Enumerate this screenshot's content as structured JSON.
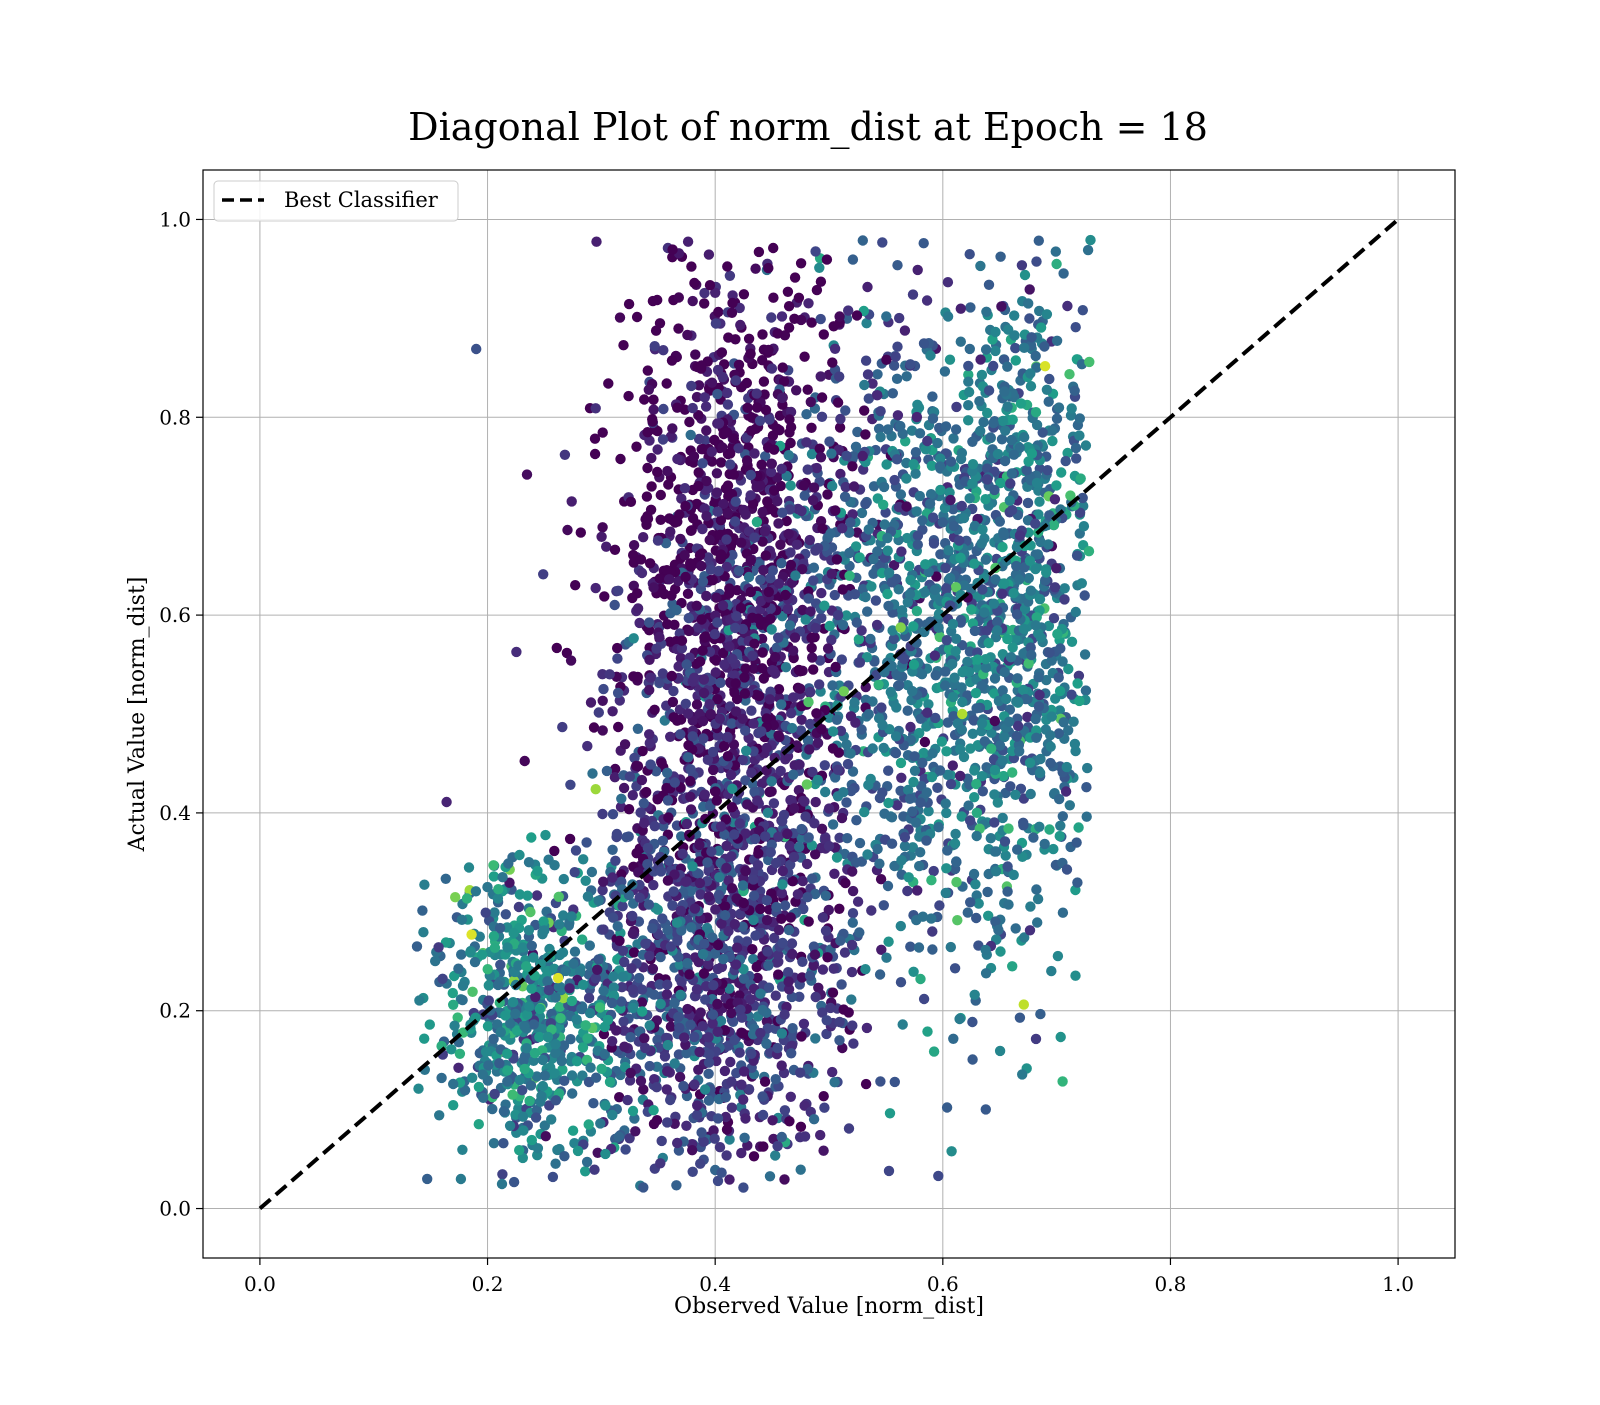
{
  "chart_data": {
    "type": "scatter",
    "title": "Diagonal Plot of norm_dist at Epoch = 18",
    "xlabel": "Observed Value [norm_dist]",
    "ylabel": "Actual Value [norm_dist]",
    "xlim": [
      -0.05,
      1.05
    ],
    "ylim": [
      -0.05,
      1.05
    ],
    "xticks": [
      "0.0",
      "0.2",
      "0.4",
      "0.6",
      "0.8",
      "1.0"
    ],
    "yticks": [
      "0.0",
      "0.2",
      "0.4",
      "0.6",
      "0.8",
      "1.0"
    ],
    "grid": true,
    "legend_position": "top-left",
    "colormap": "viridis",
    "colormap_stops": [
      "#440154",
      "#482878",
      "#3e4989",
      "#31688e",
      "#26828e",
      "#1f9e89",
      "#35b779",
      "#6ece58",
      "#b5de2b",
      "#fde725"
    ],
    "series": [
      {
        "name": "Best Classifier",
        "kind": "line",
        "style": "dashed",
        "color": "#000000",
        "x": [
          0.0,
          1.0
        ],
        "y": [
          0.0,
          1.0
        ]
      },
      {
        "kind": "scatter",
        "description_of_cloud": [
          {
            "cx": 0.42,
            "cy": 0.62,
            "sx": 0.055,
            "sy": 0.17,
            "weight": 0.3,
            "color_level": 0.08
          },
          {
            "cx": 0.58,
            "cy": 0.58,
            "sx": 0.06,
            "sy": 0.17,
            "weight": 0.22,
            "color_level": 0.35
          },
          {
            "cx": 0.4,
            "cy": 0.25,
            "sx": 0.06,
            "sy": 0.12,
            "weight": 0.22,
            "color_level": 0.18
          },
          {
            "cx": 0.24,
            "cy": 0.2,
            "sx": 0.045,
            "sy": 0.07,
            "weight": 0.12,
            "color_level": 0.42
          },
          {
            "cx": 0.67,
            "cy": 0.62,
            "sx": 0.035,
            "sy": 0.17,
            "weight": 0.14,
            "color_level": 0.4
          }
        ],
        "x_range": [
          0.13,
          0.73
        ],
        "y_range": [
          0.02,
          0.98
        ],
        "highlight_points": [
          {
            "x": 0.186,
            "y": 0.277,
            "c": 0.95
          },
          {
            "x": 0.262,
            "y": 0.233,
            "c": 0.95
          },
          {
            "x": 0.295,
            "y": 0.424,
            "c": 0.85
          },
          {
            "x": 0.617,
            "y": 0.5,
            "c": 0.88
          },
          {
            "x": 0.513,
            "y": 0.523,
            "c": 0.78
          },
          {
            "x": 0.482,
            "y": 0.512,
            "c": 0.72
          },
          {
            "x": 0.612,
            "y": 0.33,
            "c": 0.72
          },
          {
            "x": 0.59,
            "y": 0.332,
            "c": 0.65
          },
          {
            "x": 0.7,
            "y": 0.955,
            "c": 0.62
          },
          {
            "x": 0.19,
            "y": 0.869,
            "c": 0.25
          },
          {
            "x": 0.596,
            "y": 0.033,
            "c": 0.22
          },
          {
            "x": 0.147,
            "y": 0.03,
            "c": 0.3
          },
          {
            "x": 0.138,
            "y": 0.265,
            "c": 0.3
          },
          {
            "x": 0.164,
            "y": 0.411,
            "c": 0.1
          }
        ]
      }
    ]
  }
}
